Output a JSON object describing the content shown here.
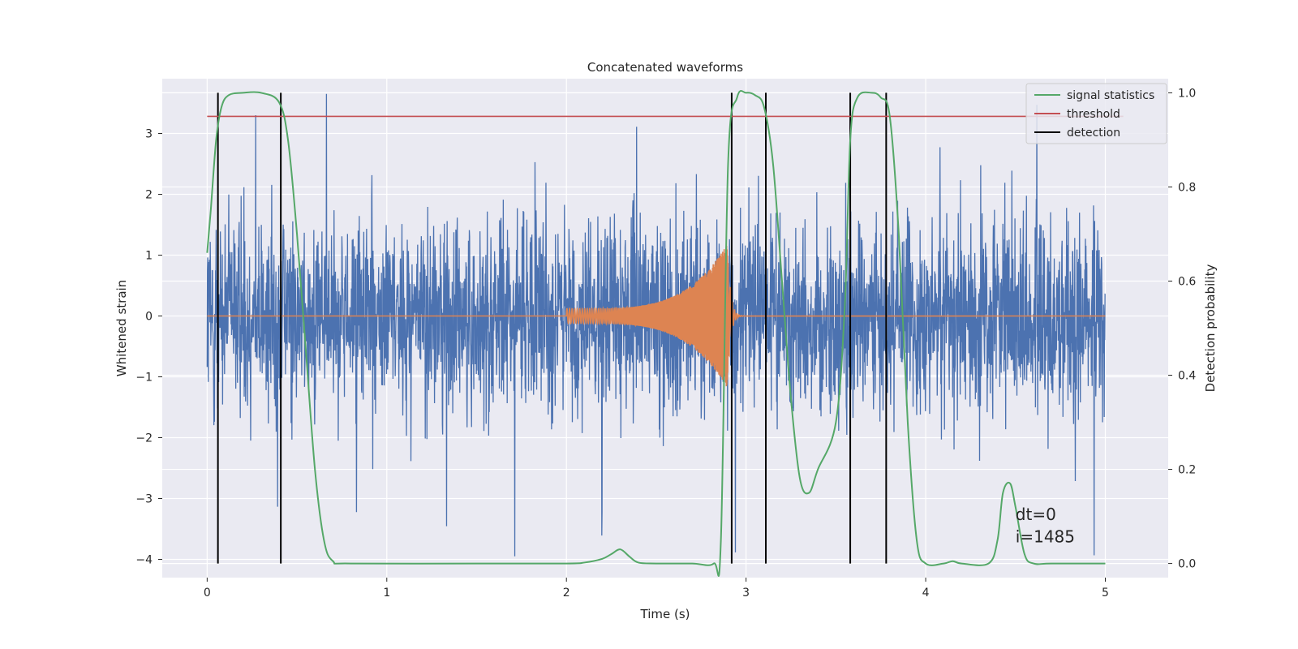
{
  "chart_data": {
    "type": "line",
    "title": "Concatenated waveforms",
    "xlabel": "Time (s)",
    "ylabel": "Whitened strain",
    "y2label": "Detection probability",
    "xlim": [
      -0.25,
      5.35
    ],
    "ylim": [
      -4.3,
      3.9
    ],
    "y2lim": [
      -0.03,
      1.03
    ],
    "xticks": [
      0,
      1,
      2,
      3,
      4,
      5
    ],
    "xtick_labels": [
      "0",
      "1",
      "2",
      "3",
      "4",
      "5"
    ],
    "yticks": [
      -4,
      -3,
      -2,
      -1,
      0,
      1,
      2,
      3
    ],
    "ytick_labels": [
      "−4",
      "−3",
      "−2",
      "−1",
      "0",
      "1",
      "2",
      "3"
    ],
    "y2ticks": [
      0.0,
      0.2,
      0.4,
      0.6,
      0.8,
      1.0
    ],
    "y2tick_labels": [
      "0.0",
      "0.2",
      "0.4",
      "0.6",
      "0.8",
      "1.0"
    ],
    "grid": true,
    "legend_position": "top-right",
    "legend": [
      "signal statistics",
      "threshold",
      "detection"
    ],
    "colors": {
      "strain": "#4c72b0",
      "waveform": "#dd8452",
      "statistics": "#55a868",
      "threshold": "#c44e52",
      "detection": "#000000",
      "background": "#eaeaf2",
      "grid": "#ffffff"
    },
    "threshold": 0.95,
    "detections": [
      0.06,
      0.41,
      2.92,
      3.11,
      3.58,
      3.78
    ],
    "waveform": {
      "start": 2.0,
      "end": 2.9,
      "amp_start": 0.12,
      "amp_peak": 1.2
    },
    "statistics": {
      "x": [
        0,
        0.02,
        0.05,
        0.08,
        0.12,
        0.2,
        0.3,
        0.4,
        0.45,
        0.5,
        0.55,
        0.6,
        0.65,
        0.7,
        0.8,
        1.5,
        2.0,
        2.1,
        2.2,
        2.25,
        2.3,
        2.35,
        2.4,
        2.5,
        2.7,
        2.82,
        2.86,
        2.9,
        2.95,
        3.0,
        3.05,
        3.1,
        3.15,
        3.2,
        3.25,
        3.3,
        3.35,
        3.4,
        3.5,
        3.55,
        3.58,
        3.62,
        3.7,
        3.75,
        3.8,
        3.85,
        3.9,
        3.95,
        4.0,
        4.1,
        4.15,
        4.2,
        4.35,
        4.4,
        4.43,
        4.47,
        4.5,
        4.55,
        4.6,
        4.7,
        5.0
      ],
      "y": [
        0.66,
        0.75,
        0.9,
        0.97,
        0.995,
        1.0,
        1.0,
        0.98,
        0.9,
        0.7,
        0.45,
        0.2,
        0.05,
        0.005,
        0.0,
        0.0,
        0.0,
        0.002,
        0.01,
        0.02,
        0.03,
        0.015,
        0.002,
        0.0,
        0.0,
        0.0,
        0.05,
        0.85,
        0.99,
        1.0,
        0.995,
        0.97,
        0.85,
        0.6,
        0.35,
        0.18,
        0.15,
        0.2,
        0.3,
        0.55,
        0.9,
        0.99,
        1.0,
        0.99,
        0.95,
        0.7,
        0.3,
        0.05,
        0.0,
        0.0,
        0.005,
        0.0,
        0.0,
        0.05,
        0.15,
        0.17,
        0.12,
        0.02,
        0.0,
        0.0,
        0.0
      ]
    },
    "annotation": {
      "dt": "dt=0",
      "i": "i=1485"
    }
  }
}
